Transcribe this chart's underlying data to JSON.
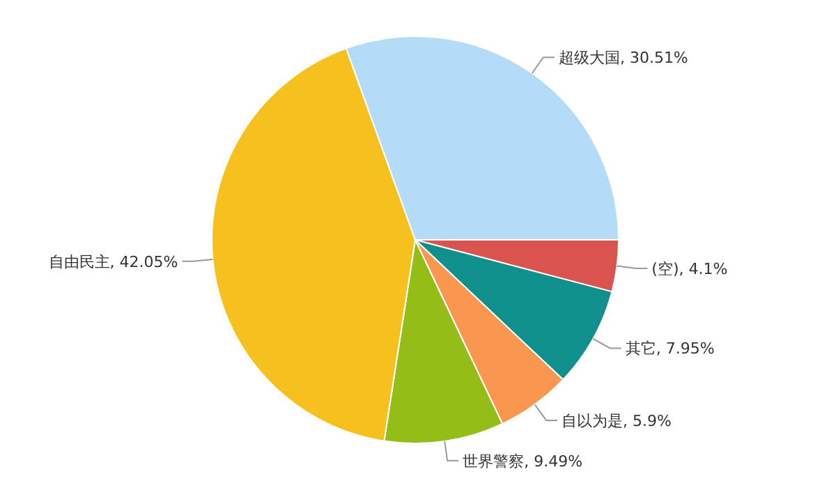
{
  "chart_data": {
    "type": "pie",
    "categories": [
      "(空)",
      "其它",
      "自以为是",
      "世界警察",
      "自由民主",
      "超级大国"
    ],
    "values": [
      4.1,
      7.95,
      5.9,
      9.49,
      42.05,
      30.51
    ],
    "value_labels": [
      "4.1%",
      "7.95%",
      "5.9%",
      "9.49%",
      "42.05%",
      "30.51%"
    ],
    "colors": [
      "#d9534f",
      "#10908c",
      "#f99650",
      "#95bd17",
      "#f6c11e",
      "#b4dbf8"
    ]
  }
}
